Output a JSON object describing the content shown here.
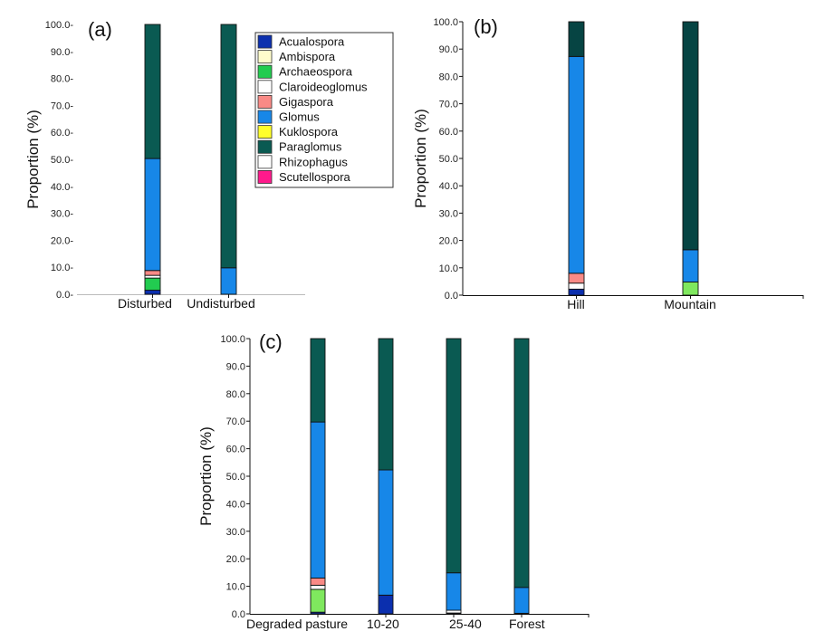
{
  "colors": {
    "Acualospora": "#0b2fae",
    "Ambispora": "#fffccc",
    "Archaeospora": "#22cc50",
    "Archaeospora_light": "#7fe85e",
    "Claroideoglomus": "#ffffff",
    "Gigaspora": "#f98a86",
    "Glomus": "#1787e8",
    "Kuklospora": "#ffff2a",
    "Paraglomus": "#0a5a52",
    "Paraglomus_dark": "#064443",
    "Rhizophagus": "#ffffff",
    "Scutellospora": "#ff1a8c"
  },
  "chart_data": [
    {
      "type": "bar",
      "stacked": true,
      "panel_label": "(a)",
      "ylabel": "Proportion (%)",
      "ylim": [
        0,
        100
      ],
      "yticks": [
        "0.0",
        "10.0",
        "20.0",
        "30.0",
        "40.0",
        "50.0",
        "60.0",
        "70.0",
        "80.0",
        "90.0",
        "100.0"
      ],
      "categories": [
        "Disturbed",
        "Undisturbed"
      ],
      "series": [
        {
          "name": "Acualospora",
          "values": [
            1.5,
            0
          ]
        },
        {
          "name": "Ambispora",
          "values": [
            0,
            0
          ]
        },
        {
          "name": "Archaeospora",
          "values": [
            4.5,
            0
          ]
        },
        {
          "name": "Claroideoglomus",
          "values": [
            1.0,
            0
          ]
        },
        {
          "name": "Gigaspora",
          "values": [
            1.8,
            0
          ]
        },
        {
          "name": "Glomus",
          "values": [
            41.5,
            9.8
          ]
        },
        {
          "name": "Kuklospora",
          "values": [
            0,
            0
          ]
        },
        {
          "name": "Paraglomus",
          "values": [
            49.7,
            90.2
          ]
        },
        {
          "name": "Rhizophagus",
          "values": [
            0,
            0
          ]
        },
        {
          "name": "Scutellospora",
          "values": [
            0,
            0
          ]
        }
      ],
      "legend": [
        "Acualospora",
        "Ambispora",
        "Archaeospora",
        "Claroideoglomus",
        "Gigaspora",
        "Glomus",
        "Kuklospora",
        "Paraglomus",
        "Rhizophagus",
        "Scutellospora"
      ],
      "legend_position": "top-right"
    },
    {
      "type": "bar",
      "stacked": true,
      "panel_label": "(b)",
      "ylabel": "Proportion (%)",
      "ylim": [
        0,
        100
      ],
      "yticks": [
        "0.0",
        "10.0",
        "20.0",
        "30.0",
        "40.0",
        "50.0",
        "60.0",
        "70.0",
        "80.0",
        "90.0",
        "100.0"
      ],
      "categories": [
        "Hill",
        "Mountain"
      ],
      "series": [
        {
          "name": "Acualospora",
          "values": [
            2.2,
            0
          ]
        },
        {
          "name": "Archaeospora",
          "values": [
            0,
            4.8
          ]
        },
        {
          "name": "Claroideoglomus",
          "values": [
            2.2,
            0
          ]
        },
        {
          "name": "Gigaspora",
          "values": [
            3.6,
            0
          ]
        },
        {
          "name": "Glomus",
          "values": [
            79.3,
            11.8
          ]
        },
        {
          "name": "Paraglomus",
          "values": [
            12.7,
            83.4
          ]
        }
      ]
    },
    {
      "type": "bar",
      "stacked": true,
      "panel_label": "(c)",
      "ylabel": "Proportion (%)",
      "ylim": [
        0,
        100
      ],
      "yticks": [
        "0.0",
        "10.0",
        "20.0",
        "30.0",
        "40.0",
        "50.0",
        "60.0",
        "70.0",
        "80.0",
        "90.0",
        "100.0"
      ],
      "categories": [
        "Degraded pasture",
        "10-20",
        "25-40",
        "Forest"
      ],
      "series": [
        {
          "name": "Acualospora",
          "values": [
            0.6,
            6.8,
            0.3,
            0.2
          ]
        },
        {
          "name": "Archaeospora",
          "values": [
            8.3,
            0,
            0,
            0
          ]
        },
        {
          "name": "Claroideoglomus",
          "values": [
            1.5,
            0,
            1.0,
            0
          ]
        },
        {
          "name": "Gigaspora",
          "values": [
            2.6,
            0,
            0,
            0
          ]
        },
        {
          "name": "Glomus",
          "values": [
            56.7,
            45.5,
            13.6,
            9.4
          ]
        },
        {
          "name": "Paraglomus",
          "values": [
            30.3,
            47.7,
            85.1,
            90.4
          ]
        }
      ]
    }
  ]
}
